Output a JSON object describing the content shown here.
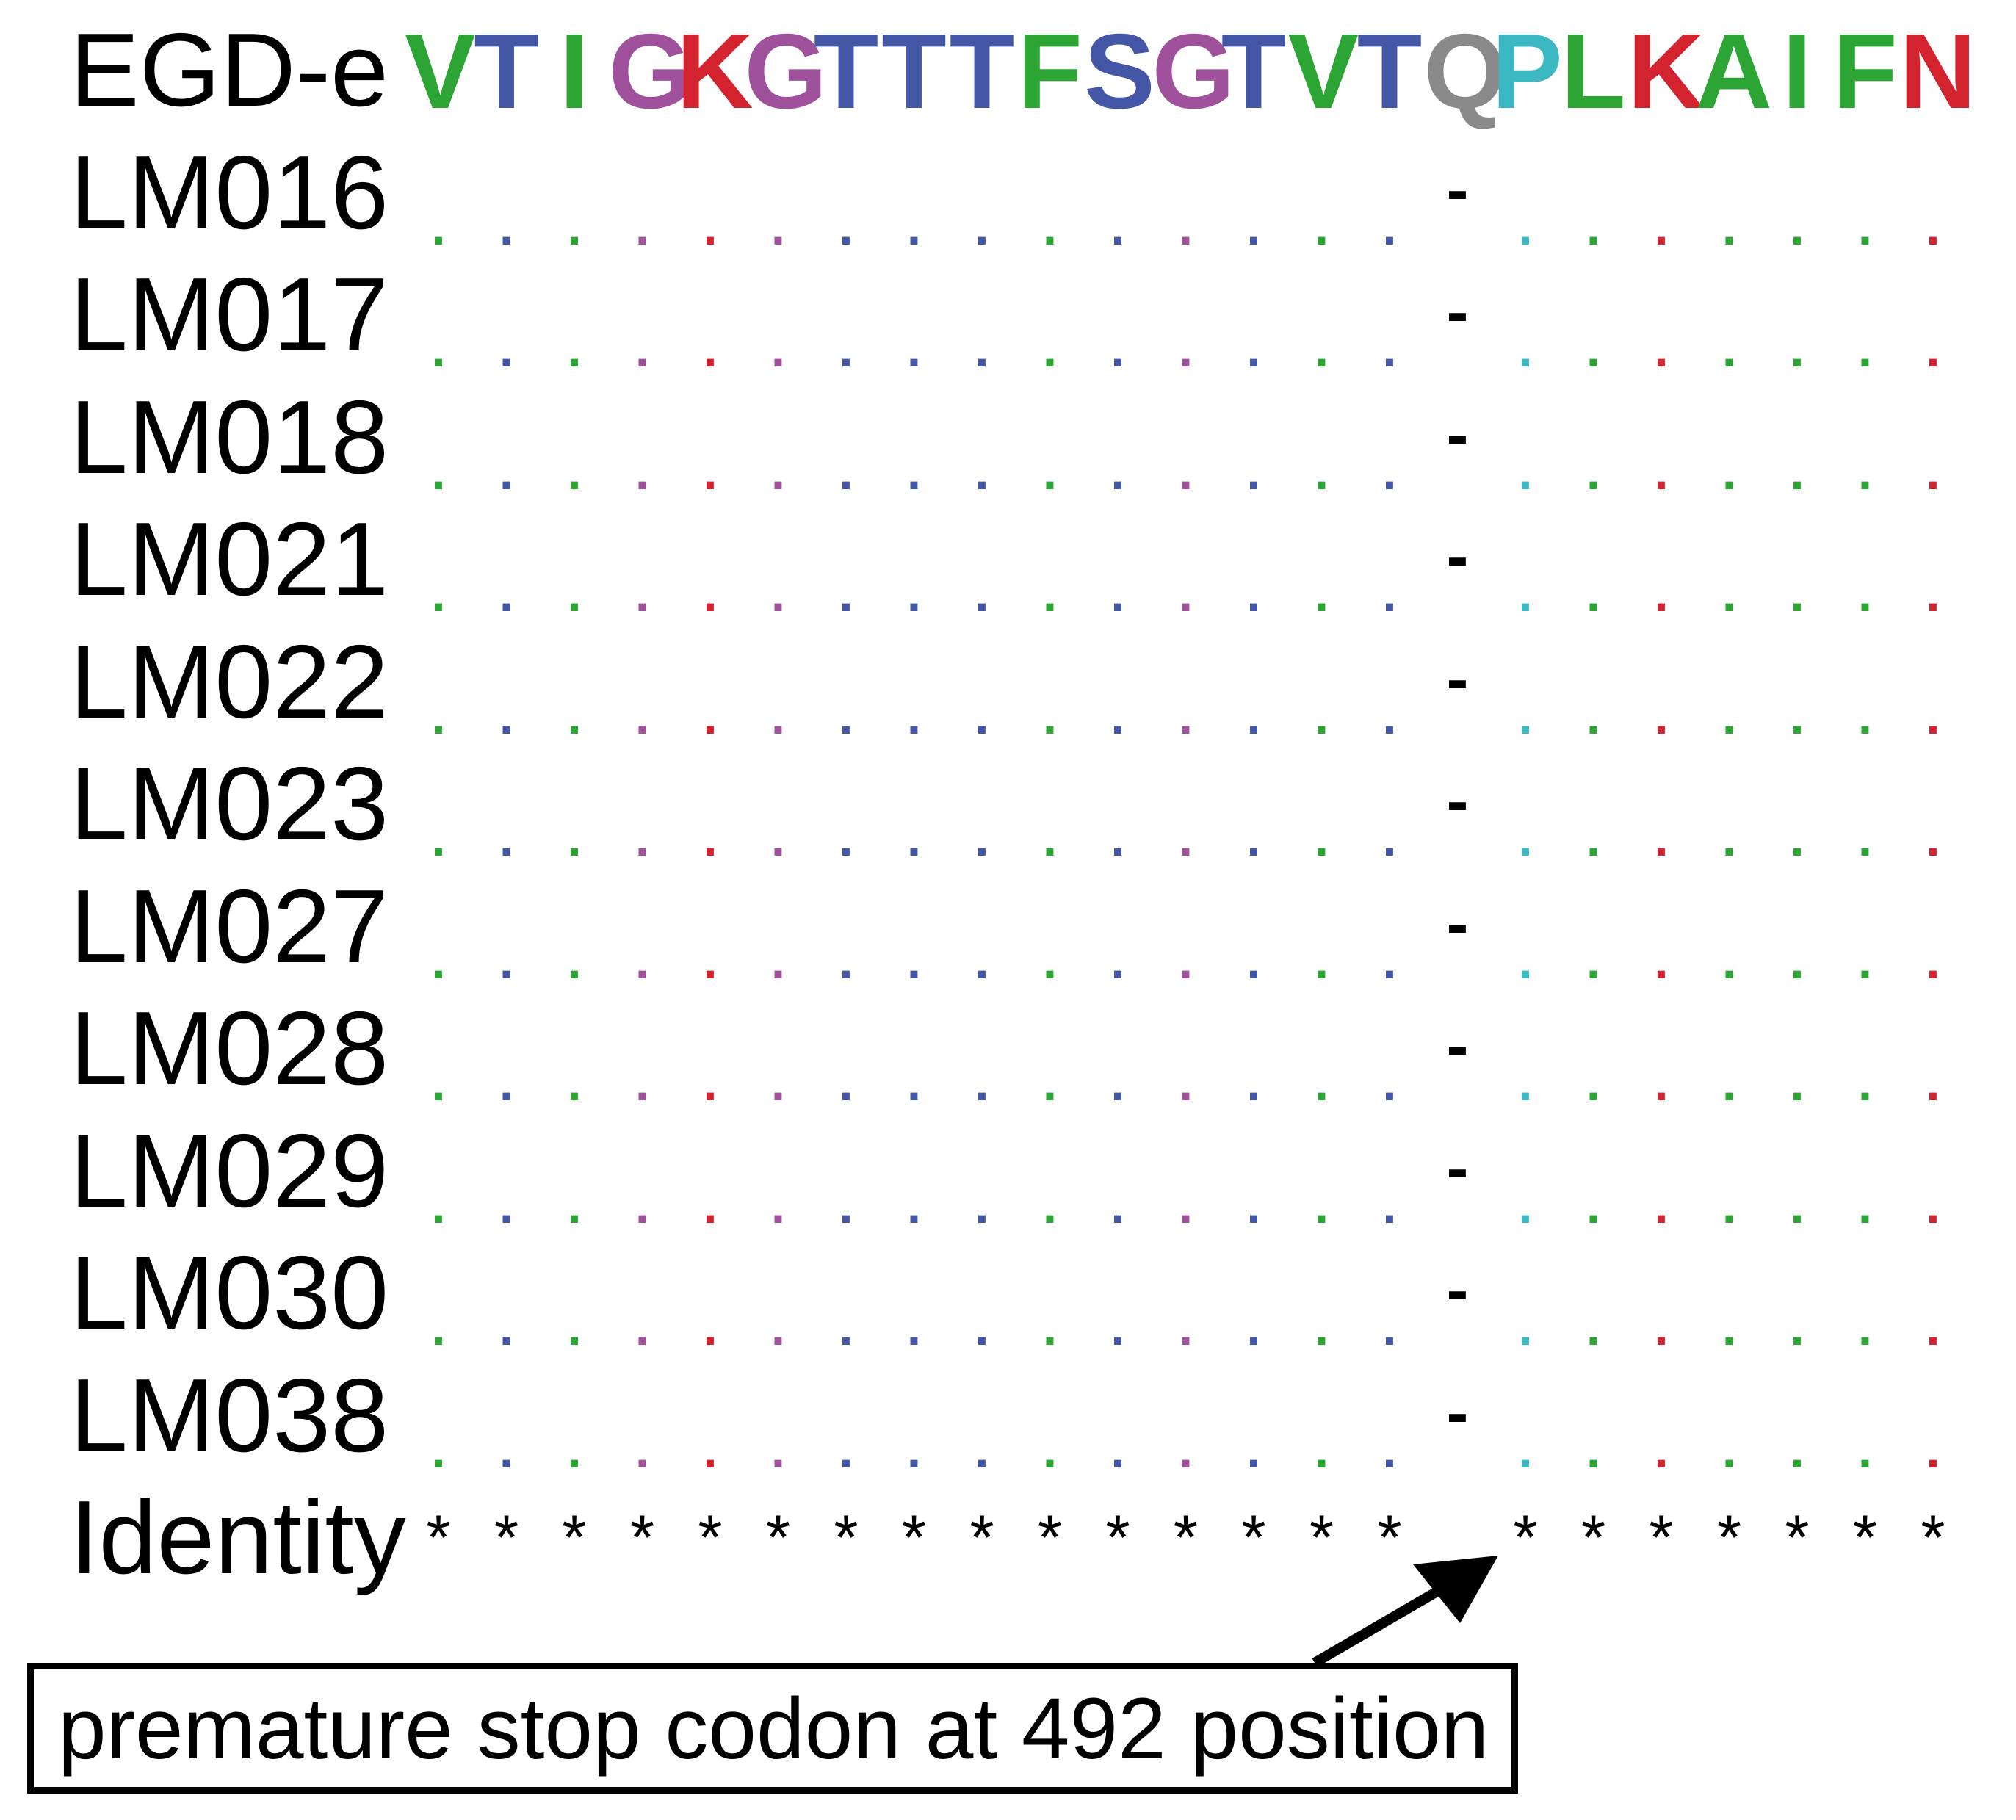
{
  "reference": {
    "name": "EGD-e",
    "residues": [
      "V",
      "T",
      "I",
      "G",
      "K",
      "G",
      "T",
      "T",
      "T",
      "F",
      "S",
      "G",
      "T",
      "V",
      "T",
      "Q",
      "P",
      "L",
      "K",
      "A",
      "I",
      "F",
      "N"
    ]
  },
  "strains": [
    {
      "name": "LM016"
    },
    {
      "name": "LM017"
    },
    {
      "name": "LM018"
    },
    {
      "name": "LM021"
    },
    {
      "name": "LM022"
    },
    {
      "name": "LM023"
    },
    {
      "name": "LM027"
    },
    {
      "name": "LM028"
    },
    {
      "name": "LM029"
    },
    {
      "name": "LM030"
    },
    {
      "name": "LM038"
    }
  ],
  "match_symbol": ".",
  "gap_symbol": "-",
  "gap_position_index": 15,
  "identity": {
    "label": "Identity",
    "symbol": "*"
  },
  "annotation": {
    "text": "premature stop codon at 492 position"
  },
  "colors": {
    "V": "#2ca535",
    "I": "#2ca535",
    "F": "#2ca535",
    "L": "#2ca535",
    "A": "#2ca535",
    "T": "#4457a6",
    "S": "#4457a6",
    "G": "#a0519c",
    "K": "#d3232e",
    "N": "#d3232e",
    "Q": "#8a8a8a",
    "P": "#3cb8c2"
  }
}
